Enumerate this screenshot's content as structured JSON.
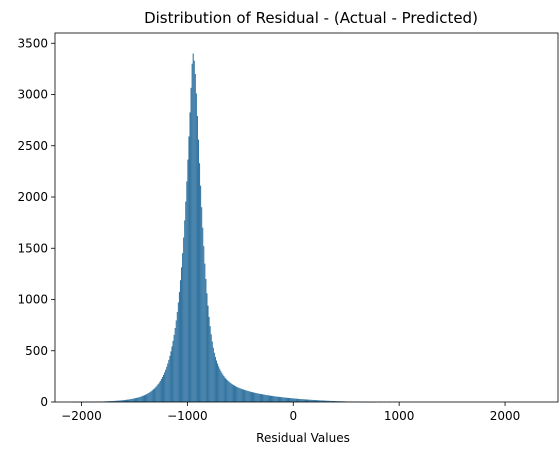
{
  "chart_data": {
    "type": "bar",
    "title": "Distribution of Residual - (Actual - Predicted)",
    "xlabel": "Residual Values",
    "ylabel": "",
    "xlim": [
      -2250,
      2500
    ],
    "ylim": [
      0,
      3600
    ],
    "x_ticks": [
      -2000,
      -1000,
      0,
      1000,
      2000
    ],
    "y_ticks": [
      0,
      500,
      1000,
      1500,
      2000,
      2500,
      3000,
      3500
    ],
    "bar_color": "#3274A1",
    "legend": "none",
    "grid": false,
    "bin_width": 10,
    "bins": {
      "start": -2090,
      "counts": [
        1,
        0,
        1,
        0,
        1,
        1,
        0,
        1,
        1,
        1,
        1,
        1,
        2,
        1,
        2,
        2,
        2,
        2,
        2,
        3,
        3,
        3,
        3,
        4,
        4,
        4,
        4,
        5,
        5,
        5,
        6,
        6,
        7,
        7,
        8,
        8,
        9,
        9,
        10,
        10,
        11,
        12,
        13,
        13,
        14,
        15,
        16,
        17,
        18,
        19,
        20,
        22,
        23,
        24,
        26,
        28,
        30,
        32,
        34,
        36,
        39,
        41,
        44,
        47,
        50,
        54,
        58,
        62,
        66,
        71,
        76,
        82,
        88,
        95,
        102,
        110,
        119,
        128,
        139,
        150,
        162,
        175,
        190,
        206,
        224,
        244,
        265,
        289,
        315,
        344,
        376,
        411,
        450,
        494,
        542,
        596,
        655,
        722,
        796,
        879,
        971,
        1074,
        1188,
        1314,
        1452,
        1605,
        1772,
        1955,
        2152,
        2365,
        2590,
        2825,
        3065,
        3300,
        3400,
        3330,
        3200,
        3010,
        2790,
        2560,
        2330,
        2110,
        1900,
        1700,
        1520,
        1350,
        1200,
        1060,
        940,
        830,
        740,
        660,
        590,
        530,
        480,
        440,
        405,
        375,
        348,
        325,
        304,
        285,
        268,
        253,
        239,
        227,
        216,
        206,
        197,
        188,
        180,
        173,
        166,
        160,
        154,
        149,
        144,
        139,
        135,
        131,
        127,
        123,
        120,
        116,
        113,
        110,
        107,
        104,
        101,
        98,
        96,
        93,
        91,
        88,
        86,
        84,
        82,
        80,
        78,
        76,
        74,
        72,
        70,
        68,
        67,
        65,
        63,
        62,
        60,
        59,
        57,
        56,
        54,
        53,
        52,
        50,
        49,
        48,
        46,
        45,
        44,
        43,
        42,
        41,
        40,
        39,
        38,
        37,
        36,
        35,
        34,
        33,
        32,
        31,
        30,
        29,
        28,
        28,
        27,
        26,
        25,
        25,
        24,
        23,
        22,
        22,
        21,
        20,
        20,
        19,
        18,
        18,
        17,
        17,
        16,
        15,
        15,
        14,
        14,
        13,
        13,
        12,
        12,
        11,
        11,
        10,
        10,
        10,
        9,
        9,
        8,
        8,
        8,
        7,
        7,
        7,
        6,
        6,
        6,
        5,
        5,
        5,
        5,
        4,
        4,
        4,
        4,
        3,
        3,
        3,
        3,
        3,
        2,
        2,
        2,
        2,
        2,
        2,
        1,
        1,
        1,
        1,
        1,
        1,
        1,
        1,
        1,
        0,
        1,
        0,
        1,
        0,
        1,
        0,
        0,
        1,
        0,
        0,
        0,
        1,
        0,
        0,
        0,
        0,
        1
      ]
    }
  }
}
